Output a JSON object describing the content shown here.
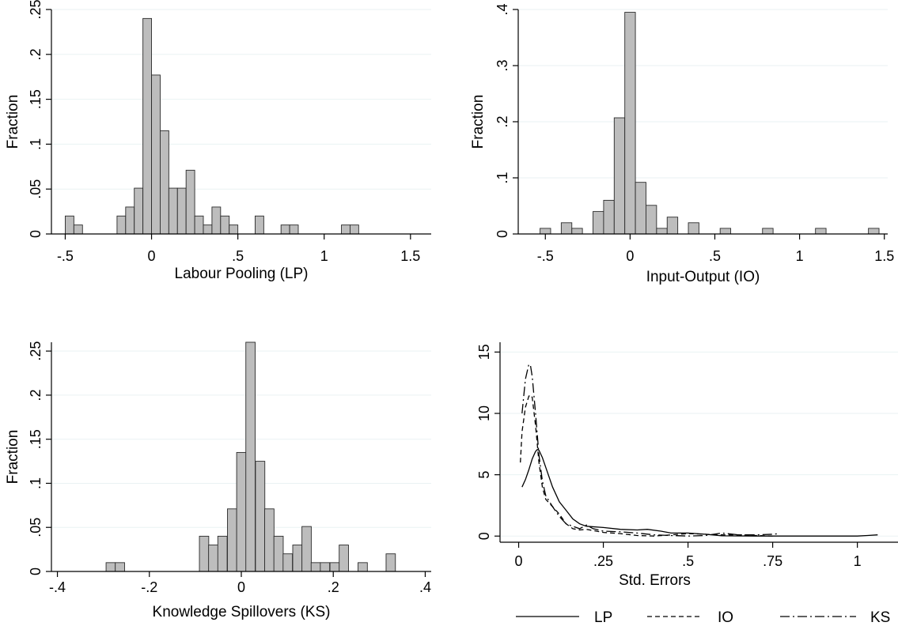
{
  "chart_data": [
    {
      "type": "histogram",
      "xlabel": "Labour Pooling (LP)",
      "ylabel": "Fraction",
      "xlim": [
        -0.58,
        1.62
      ],
      "ylim": [
        0,
        0.25
      ],
      "xticks": [
        {
          "v": -0.5,
          "label": "-.5"
        },
        {
          "v": 0,
          "label": "0"
        },
        {
          "v": 0.5,
          "label": ".5"
        },
        {
          "v": 1,
          "label": "1"
        },
        {
          "v": 1.5,
          "label": "1.5"
        }
      ],
      "yticks": [
        {
          "v": 0,
          "label": "0"
        },
        {
          "v": 0.05,
          "label": ".05"
        },
        {
          "v": 0.1,
          "label": ".1"
        },
        {
          "v": 0.15,
          "label": ".15"
        },
        {
          "v": 0.2,
          "label": ".2"
        },
        {
          "v": 0.25,
          "label": ".25"
        }
      ],
      "bin_width": 0.05,
      "bins": [
        {
          "x": -0.475,
          "y": 0.02
        },
        {
          "x": -0.425,
          "y": 0.01
        },
        {
          "x": -0.175,
          "y": 0.02
        },
        {
          "x": -0.125,
          "y": 0.03
        },
        {
          "x": -0.075,
          "y": 0.051
        },
        {
          "x": -0.025,
          "y": 0.24
        },
        {
          "x": 0.025,
          "y": 0.177
        },
        {
          "x": 0.075,
          "y": 0.115
        },
        {
          "x": 0.125,
          "y": 0.051
        },
        {
          "x": 0.175,
          "y": 0.051
        },
        {
          "x": 0.225,
          "y": 0.071
        },
        {
          "x": 0.275,
          "y": 0.02
        },
        {
          "x": 0.325,
          "y": 0.01
        },
        {
          "x": 0.375,
          "y": 0.03
        },
        {
          "x": 0.425,
          "y": 0.02
        },
        {
          "x": 0.475,
          "y": 0.01
        },
        {
          "x": 0.625,
          "y": 0.02
        },
        {
          "x": 0.775,
          "y": 0.01
        },
        {
          "x": 0.825,
          "y": 0.01
        },
        {
          "x": 1.125,
          "y": 0.01
        },
        {
          "x": 1.175,
          "y": 0.01
        }
      ]
    },
    {
      "type": "histogram",
      "xlabel": "Input-Output (IO)",
      "ylabel": "Fraction",
      "xlim": [
        -0.66,
        1.52
      ],
      "ylim": [
        0,
        0.4
      ],
      "xticks": [
        {
          "v": -0.5,
          "label": "-.5"
        },
        {
          "v": 0,
          "label": "0"
        },
        {
          "v": 0.5,
          "label": ".5"
        },
        {
          "v": 1,
          "label": "1"
        },
        {
          "v": 1.5,
          "label": "1.5"
        }
      ],
      "yticks": [
        {
          "v": 0,
          "label": "0"
        },
        {
          "v": 0.1,
          "label": ".1"
        },
        {
          "v": 0.2,
          "label": ".2"
        },
        {
          "v": 0.3,
          "label": ".3"
        },
        {
          "v": 0.4,
          "label": ".4"
        }
      ],
      "bin_width": 0.0625,
      "bins": [
        {
          "x": -0.5,
          "y": 0.01
        },
        {
          "x": -0.375,
          "y": 0.02
        },
        {
          "x": -0.3125,
          "y": 0.01
        },
        {
          "x": -0.1875,
          "y": 0.04
        },
        {
          "x": -0.125,
          "y": 0.06
        },
        {
          "x": -0.0625,
          "y": 0.207
        },
        {
          "x": 0.0,
          "y": 0.395
        },
        {
          "x": 0.0625,
          "y": 0.092
        },
        {
          "x": 0.125,
          "y": 0.051
        },
        {
          "x": 0.1875,
          "y": 0.01
        },
        {
          "x": 0.25,
          "y": 0.03
        },
        {
          "x": 0.375,
          "y": 0.02
        },
        {
          "x": 0.5625,
          "y": 0.01
        },
        {
          "x": 0.8125,
          "y": 0.01
        },
        {
          "x": 1.125,
          "y": 0.01
        },
        {
          "x": 1.4375,
          "y": 0.01
        }
      ]
    },
    {
      "type": "histogram",
      "xlabel": "Knowledge Spillovers (KS)",
      "ylabel": "Fraction",
      "xlim": [
        -0.413,
        0.413
      ],
      "ylim": [
        0,
        0.26
      ],
      "xticks": [
        {
          "v": -0.4,
          "label": "-.4"
        },
        {
          "v": -0.2,
          "label": "-.2"
        },
        {
          "v": 0,
          "label": "0"
        },
        {
          "v": 0.2,
          "label": ".2"
        },
        {
          "v": 0.4,
          "label": ".4"
        }
      ],
      "yticks": [
        {
          "v": 0,
          "label": "0"
        },
        {
          "v": 0.05,
          "label": ".05"
        },
        {
          "v": 0.1,
          "label": ".1"
        },
        {
          "v": 0.15,
          "label": ".15"
        },
        {
          "v": 0.2,
          "label": ".2"
        },
        {
          "v": 0.25,
          "label": ".25"
        }
      ],
      "bin_width": 0.0203,
      "bins": [
        {
          "x": -0.284,
          "y": 0.01
        },
        {
          "x": -0.264,
          "y": 0.01
        },
        {
          "x": -0.081,
          "y": 0.04
        },
        {
          "x": -0.061,
          "y": 0.03
        },
        {
          "x": -0.041,
          "y": 0.04
        },
        {
          "x": -0.02,
          "y": 0.071
        },
        {
          "x": 0.0,
          "y": 0.135
        },
        {
          "x": 0.02,
          "y": 0.26
        },
        {
          "x": 0.041,
          "y": 0.125
        },
        {
          "x": 0.061,
          "y": 0.071
        },
        {
          "x": 0.081,
          "y": 0.04
        },
        {
          "x": 0.101,
          "y": 0.02
        },
        {
          "x": 0.122,
          "y": 0.03
        },
        {
          "x": 0.142,
          "y": 0.051
        },
        {
          "x": 0.162,
          "y": 0.01
        },
        {
          "x": 0.182,
          "y": 0.01
        },
        {
          "x": 0.203,
          "y": 0.01
        },
        {
          "x": 0.223,
          "y": 0.03
        },
        {
          "x": 0.264,
          "y": 0.01
        },
        {
          "x": 0.325,
          "y": 0.02
        }
      ]
    },
    {
      "type": "line",
      "xlabel": "Std. Errors",
      "ylabel": "",
      "xlim": [
        -0.055,
        1.12
      ],
      "ylim": [
        -0.5,
        15.8
      ],
      "xticks": [
        {
          "v": 0,
          "label": "0"
        },
        {
          "v": 0.25,
          "label": ".25"
        },
        {
          "v": 0.5,
          "label": ".5"
        },
        {
          "v": 0.75,
          "label": ".75"
        },
        {
          "v": 1,
          "label": "1"
        }
      ],
      "yticks": [
        {
          "v": 0,
          "label": "0"
        },
        {
          "v": 5,
          "label": "5"
        },
        {
          "v": 10,
          "label": "10"
        },
        {
          "v": 15,
          "label": "15"
        }
      ],
      "legend_position": "bottom",
      "series": [
        {
          "name": "LP",
          "dash": "solid",
          "points": [
            [
              0.01,
              4.0
            ],
            [
              0.02,
              4.6
            ],
            [
              0.03,
              5.4
            ],
            [
              0.04,
              6.3
            ],
            [
              0.05,
              6.9
            ],
            [
              0.055,
              7.05
            ],
            [
              0.06,
              7.0
            ],
            [
              0.07,
              6.4
            ],
            [
              0.08,
              5.6
            ],
            [
              0.1,
              4.0
            ],
            [
              0.12,
              2.8
            ],
            [
              0.14,
              2.1
            ],
            [
              0.16,
              1.4
            ],
            [
              0.18,
              1.0
            ],
            [
              0.2,
              0.8
            ],
            [
              0.25,
              0.7
            ],
            [
              0.3,
              0.55
            ],
            [
              0.35,
              0.5
            ],
            [
              0.38,
              0.55
            ],
            [
              0.42,
              0.4
            ],
            [
              0.45,
              0.25
            ],
            [
              0.5,
              0.25
            ],
            [
              0.55,
              0.15
            ],
            [
              0.6,
              0.02
            ],
            [
              0.7,
              0.0
            ],
            [
              0.8,
              0.0
            ],
            [
              0.9,
              0.0
            ],
            [
              1.0,
              0.0
            ],
            [
              1.03,
              0.05
            ],
            [
              1.06,
              0.1
            ]
          ]
        },
        {
          "name": "IO",
          "dash": "dashed",
          "points": [
            [
              0.005,
              6.0
            ],
            [
              0.01,
              8.5
            ],
            [
              0.02,
              10.5
            ],
            [
              0.03,
              11.4
            ],
            [
              0.035,
              11.5
            ],
            [
              0.04,
              11.3
            ],
            [
              0.05,
              9.0
            ],
            [
              0.06,
              6.0
            ],
            [
              0.07,
              4.0
            ],
            [
              0.08,
              3.0
            ],
            [
              0.1,
              2.4
            ],
            [
              0.12,
              1.8
            ],
            [
              0.14,
              1.0
            ],
            [
              0.16,
              0.6
            ],
            [
              0.18,
              0.5
            ],
            [
              0.2,
              0.55
            ],
            [
              0.25,
              0.3
            ],
            [
              0.3,
              0.2
            ],
            [
              0.35,
              0.05
            ],
            [
              0.4,
              0.0
            ],
            [
              0.45,
              0.1
            ],
            [
              0.5,
              0.2
            ],
            [
              0.55,
              0.15
            ],
            [
              0.6,
              0.1
            ],
            [
              0.65,
              0.1
            ],
            [
              0.7,
              0.05
            ],
            [
              0.75,
              0.0
            ]
          ]
        },
        {
          "name": "KS",
          "dash": "dashdot",
          "points": [
            [
              0.01,
              10.0
            ],
            [
              0.02,
              12.8
            ],
            [
              0.03,
              14.0
            ],
            [
              0.035,
              13.9
            ],
            [
              0.04,
              13.0
            ],
            [
              0.05,
              10.0
            ],
            [
              0.06,
              6.6
            ],
            [
              0.07,
              4.5
            ],
            [
              0.08,
              3.3
            ],
            [
              0.1,
              2.4
            ],
            [
              0.12,
              1.6
            ],
            [
              0.14,
              1.0
            ],
            [
              0.16,
              0.8
            ],
            [
              0.18,
              0.6
            ],
            [
              0.2,
              0.9
            ],
            [
              0.22,
              0.6
            ],
            [
              0.25,
              0.4
            ],
            [
              0.3,
              0.35
            ],
            [
              0.35,
              0.25
            ],
            [
              0.4,
              0.1
            ],
            [
              0.45,
              0.05
            ],
            [
              0.5,
              0.0
            ],
            [
              0.55,
              0.05
            ],
            [
              0.6,
              0.25
            ],
            [
              0.65,
              0.1
            ],
            [
              0.7,
              0.1
            ],
            [
              0.75,
              0.15
            ],
            [
              0.77,
              0.2
            ]
          ]
        }
      ]
    }
  ]
}
